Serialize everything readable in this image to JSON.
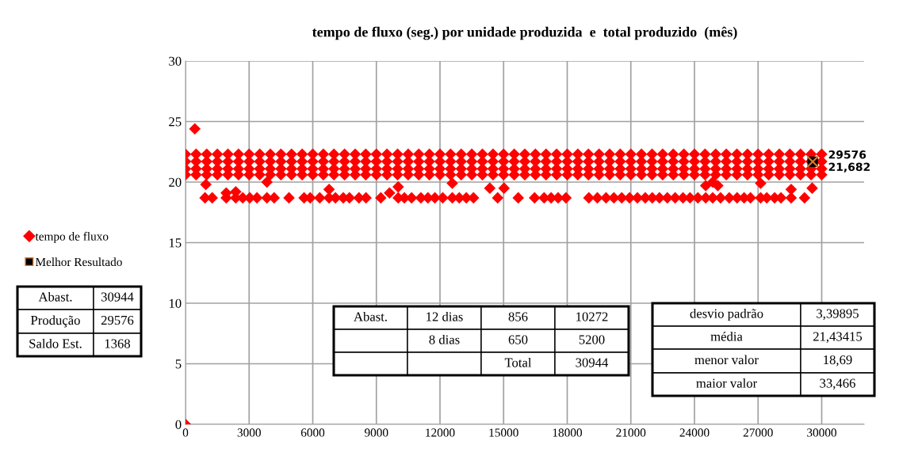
{
  "chart_data": {
    "type": "scatter",
    "title": "tempo de fluxo (seg.) por unidade produzida  e  total produzido  (mês)",
    "xlim": [
      0,
      32000
    ],
    "xticks": [
      0,
      3000,
      6000,
      9000,
      12000,
      15000,
      18000,
      21000,
      24000,
      27000,
      30000
    ],
    "ylim": [
      0,
      30
    ],
    "yticks": [
      0,
      5,
      10,
      15,
      20,
      25,
      30
    ],
    "grid": true,
    "legend": "left",
    "series": [
      {
        "name": "tempo de fluxo",
        "color": "#ff0000",
        "marker": "diamond",
        "x": [
          0,
          500,
          1000,
          1500,
          2000,
          2500,
          3000,
          3500,
          4000,
          4500,
          5000,
          5500,
          6000,
          6500,
          7000,
          7500,
          8000,
          8500,
          9000,
          9500,
          10000,
          10500,
          11000,
          11500,
          12000,
          12500,
          13000,
          13500,
          14000,
          14500,
          15000,
          15500,
          16000,
          16500,
          17000,
          17500,
          18000,
          18500,
          19000,
          19500,
          20000,
          20500,
          21000,
          21500,
          22000,
          22500,
          23000,
          23500,
          24000,
          24500,
          25000,
          25500,
          26000,
          26500,
          27000,
          27500,
          28000,
          28500,
          29000,
          29500,
          30000,
          0,
          500,
          1000,
          1500,
          2000,
          2500,
          3000,
          3500,
          4000,
          4500,
          5000,
          5500,
          6000,
          6500,
          7000,
          7500,
          8000,
          8500,
          9000,
          9500,
          10000,
          10500,
          11000,
          11500,
          12000,
          12500,
          13000,
          13500,
          14000,
          14500,
          15000,
          15500,
          16000,
          16500,
          17000,
          17500,
          18000,
          18500,
          19000,
          19500,
          20000,
          20500,
          21000,
          21500,
          22000,
          22500,
          23000,
          23500,
          24000,
          24500,
          25000,
          25500,
          26000,
          26500,
          27000,
          27500,
          28000,
          28500,
          29000,
          29500,
          30000,
          0,
          500,
          1000,
          1500,
          2000,
          2500,
          3000,
          3500,
          4000,
          4500,
          5000,
          5500,
          6000,
          6500,
          7000,
          7500,
          8000,
          8500,
          9000,
          9500,
          10000,
          10500,
          11000,
          11500,
          12000,
          12500,
          13000,
          13500,
          14000,
          14500,
          15000,
          15500,
          16000,
          16500,
          17000,
          17500,
          18000,
          18500,
          19000,
          19500,
          20000,
          20500,
          21000,
          21500,
          22000,
          22500,
          23000,
          23500,
          24000,
          24500,
          25000,
          25500,
          26000,
          26500,
          27000,
          27500,
          28000,
          28500,
          29000,
          29500,
          30000,
          0,
          500,
          1000,
          1500,
          2000,
          2500,
          3000,
          3500,
          4000,
          4500,
          5000,
          5500,
          6000,
          6500,
          7000,
          7500,
          8000,
          8500,
          9000,
          9500,
          10000,
          10500,
          11000,
          11500,
          12000,
          12500,
          13000,
          13500,
          14000,
          14500,
          15000,
          15500,
          16000,
          16500,
          17000,
          17500,
          18000,
          18500,
          19000,
          19500,
          20000,
          20500,
          21000,
          21500,
          22000,
          22500,
          23000,
          23500,
          24000,
          24500,
          25000,
          25500,
          26000,
          26500,
          27000,
          27500,
          28000,
          28500,
          29000,
          29500,
          30000,
          0,
          440,
          920,
          1260,
          1920,
          2370,
          2700,
          3030,
          3370,
          3840,
          4180,
          4880,
          5590,
          5880,
          6330,
          6770,
          7070,
          7440,
          7730,
          8180,
          8510,
          9210,
          10030,
          10320,
          10660,
          11100,
          11430,
          11760,
          12130,
          12580,
          12910,
          13240,
          13580,
          14720,
          15690,
          16460,
          16910,
          17240,
          17570,
          17940,
          19020,
          19420,
          19830,
          20200,
          20570,
          20940,
          21310,
          21680,
          22010,
          22350,
          22720,
          23090,
          23460,
          23790,
          24160,
          24530,
          24860,
          25230,
          25640,
          26010,
          26340,
          26640,
          27120,
          27410,
          27780,
          28080,
          28560,
          29190,
          960,
          1920,
          2370,
          3840,
          6770,
          9620,
          10030,
          12580,
          14350,
          15020,
          24530,
          24860,
          25100,
          27120,
          28560,
          29550
        ],
        "values": [
          22.3,
          22.3,
          22.3,
          22.3,
          22.3,
          22.3,
          22.3,
          22.3,
          22.3,
          22.3,
          22.3,
          22.3,
          22.3,
          22.3,
          22.3,
          22.3,
          22.3,
          22.3,
          22.3,
          22.3,
          22.3,
          22.3,
          22.3,
          22.3,
          22.3,
          22.3,
          22.3,
          22.3,
          22.3,
          22.3,
          22.3,
          22.3,
          22.3,
          22.3,
          22.3,
          22.3,
          22.3,
          22.3,
          22.3,
          22.3,
          22.3,
          22.3,
          22.3,
          22.3,
          22.3,
          22.3,
          22.3,
          22.3,
          22.3,
          22.3,
          22.3,
          22.3,
          22.3,
          22.3,
          22.3,
          22.3,
          22.3,
          22.3,
          22.3,
          22.3,
          22.3,
          21.7,
          21.7,
          21.7,
          21.7,
          21.7,
          21.7,
          21.7,
          21.7,
          21.7,
          21.7,
          21.7,
          21.7,
          21.7,
          21.7,
          21.7,
          21.7,
          21.7,
          21.7,
          21.7,
          21.7,
          21.7,
          21.7,
          21.7,
          21.7,
          21.7,
          21.7,
          21.7,
          21.7,
          21.7,
          21.7,
          21.7,
          21.7,
          21.7,
          21.7,
          21.7,
          21.7,
          21.7,
          21.7,
          21.7,
          21.7,
          21.7,
          21.7,
          21.7,
          21.7,
          21.7,
          21.7,
          21.7,
          21.7,
          21.7,
          21.7,
          21.7,
          21.7,
          21.7,
          21.7,
          21.7,
          21.7,
          21.7,
          21.7,
          21.7,
          21.7,
          21.7,
          21.1,
          21.1,
          21.1,
          21.1,
          21.1,
          21.1,
          21.1,
          21.1,
          21.1,
          21.1,
          21.1,
          21.1,
          21.1,
          21.1,
          21.1,
          21.1,
          21.1,
          21.1,
          21.1,
          21.1,
          21.1,
          21.1,
          21.1,
          21.1,
          21.1,
          21.1,
          21.1,
          21.1,
          21.1,
          21.1,
          21.1,
          21.1,
          21.1,
          21.1,
          21.1,
          21.1,
          21.1,
          21.1,
          21.1,
          21.1,
          21.1,
          21.1,
          21.1,
          21.1,
          21.1,
          21.1,
          21.1,
          21.1,
          21.1,
          21.1,
          21.1,
          21.1,
          21.1,
          21.1,
          21.1,
          21.1,
          21.1,
          21.1,
          21.1,
          21.1,
          21.1,
          20.6,
          20.6,
          20.6,
          20.6,
          20.6,
          20.6,
          20.6,
          20.6,
          20.6,
          20.6,
          20.6,
          20.6,
          20.6,
          20.6,
          20.6,
          20.6,
          20.6,
          20.6,
          20.6,
          20.6,
          20.6,
          20.6,
          20.6,
          20.6,
          20.6,
          20.6,
          20.6,
          20.6,
          20.6,
          20.6,
          20.6,
          20.6,
          20.6,
          20.6,
          20.6,
          20.6,
          20.6,
          20.6,
          20.6,
          20.6,
          20.6,
          20.6,
          20.6,
          20.6,
          20.6,
          20.6,
          20.6,
          20.6,
          20.6,
          20.6,
          20.6,
          20.6,
          20.6,
          20.6,
          20.6,
          20.6,
          20.6,
          20.6,
          20.6,
          20.6,
          20.6,
          0,
          24.4,
          18.7,
          18.7,
          18.7,
          18.7,
          18.7,
          18.7,
          18.7,
          18.7,
          18.7,
          18.7,
          18.7,
          18.7,
          18.7,
          18.7,
          18.7,
          18.7,
          18.7,
          18.7,
          18.7,
          18.7,
          18.7,
          18.7,
          18.7,
          18.7,
          18.7,
          18.7,
          18.7,
          18.7,
          18.7,
          18.7,
          18.7,
          18.7,
          18.7,
          18.7,
          18.7,
          18.7,
          18.7,
          18.7,
          18.7,
          18.7,
          18.7,
          18.7,
          18.7,
          18.7,
          18.7,
          18.7,
          18.7,
          18.7,
          18.7,
          18.7,
          18.7,
          18.7,
          18.7,
          18.7,
          18.7,
          18.7,
          18.7,
          18.7,
          18.7,
          18.7,
          18.7,
          18.7,
          18.7,
          18.7,
          18.7,
          18.7,
          19.8,
          19.1,
          19.2,
          20.0,
          19.4,
          19.1,
          19.6,
          19.9,
          19.5,
          19.5,
          19.7,
          20.0,
          19.7,
          19.9,
          19.4,
          19.5
        ]
      },
      {
        "name": "Melhor Resultado",
        "color": "#000000",
        "marker": "square",
        "x": [
          29576
        ],
        "values": [
          21.682
        ],
        "value_labels": [
          "29576\n21,682"
        ]
      }
    ],
    "annotations": [
      "Abast.",
      "30944",
      "Produção",
      "29576",
      "Saldo Est.",
      "1368",
      "Abast.",
      "12 dias",
      "856",
      "10272",
      "8 dias",
      "650",
      "5200",
      "Total",
      "30944",
      "desvio padrão",
      "3,39895",
      "média",
      "21,43415",
      "menor valor",
      "18,69",
      "maior valor",
      "33,466"
    ]
  }
}
